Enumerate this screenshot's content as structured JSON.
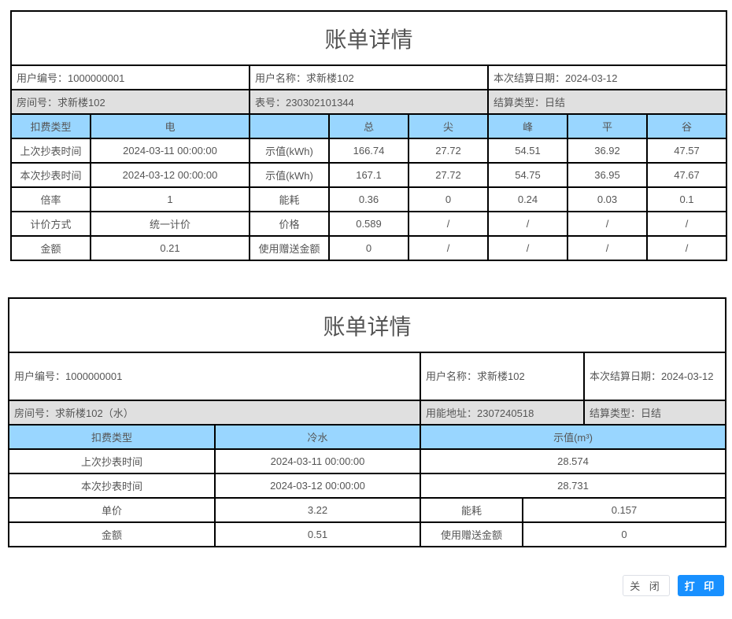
{
  "elec": {
    "title": "账单详情",
    "info1": [
      "用户编号：1000000001",
      "用户名称：求新楼102",
      "本次结算日期：2024-03-12"
    ],
    "info2": [
      "房间号：求新楼102",
      "表号：230302101344",
      "结算类型：日结"
    ],
    "header": [
      "扣费类型",
      "电",
      "",
      "总",
      "尖",
      "峰",
      "平",
      "谷"
    ],
    "rows": [
      [
        "上次抄表时间",
        "2024-03-11 00:00:00",
        "示值(kWh)",
        "166.74",
        "27.72",
        "54.51",
        "36.92",
        "47.57"
      ],
      [
        "本次抄表时间",
        "2024-03-12 00:00:00",
        "示值(kWh)",
        "167.1",
        "27.72",
        "54.75",
        "36.95",
        "47.67"
      ],
      [
        "倍率",
        "1",
        "能耗",
        "0.36",
        "0",
        "0.24",
        "0.03",
        "0.1"
      ],
      [
        "计价方式",
        "统一计价",
        "价格",
        "0.589",
        "/",
        "/",
        "/",
        "/"
      ],
      [
        "金额",
        "0.21",
        "使用赠送金额",
        "0",
        "/",
        "/",
        "/",
        "/"
      ]
    ]
  },
  "water": {
    "title": "账单详情",
    "info1": [
      "用户编号：1000000001",
      "用户名称：求新楼102",
      "本次结算日期：2024-03-12"
    ],
    "info2": [
      "房间号：求新楼102（水）",
      "用能地址：2307240518",
      "结算类型：日结"
    ],
    "header": [
      "扣费类型",
      "冷水",
      "示值(m³)"
    ],
    "rows": [
      [
        "上次抄表时间",
        "2024-03-11 00:00:00",
        "28.574"
      ],
      [
        "本次抄表时间",
        "2024-03-12 00:00:00",
        "28.731"
      ]
    ],
    "rows2": [
      [
        "单价",
        "3.22",
        "能耗",
        "0.157"
      ],
      [
        "金额",
        "0.51",
        "使用赠送金额",
        "0"
      ]
    ]
  },
  "buttons": {
    "close": "关 闭",
    "print": "打 印"
  },
  "colors": {
    "header": "#99d6ff",
    "gray": "#e0e0e0",
    "primary": "#1890ff"
  }
}
